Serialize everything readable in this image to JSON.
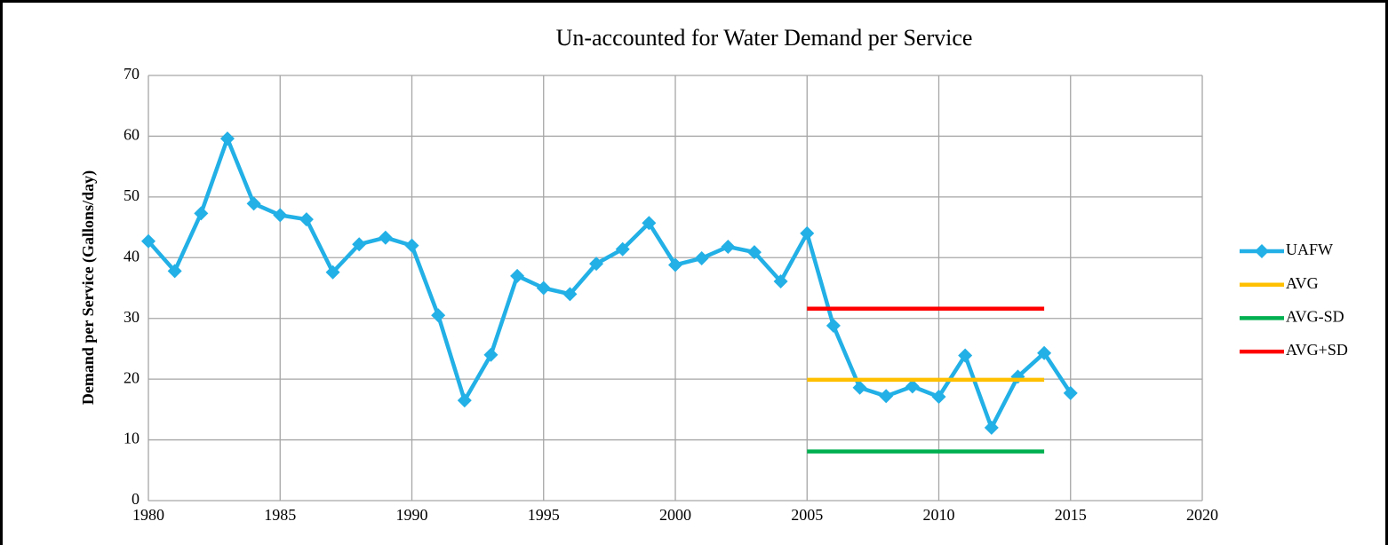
{
  "chart_data": {
    "type": "line",
    "title": "Un-accounted for Water Demand per Service",
    "y_label": "Demand per Service (Gallons/day)",
    "xlim": [
      1980,
      2020
    ],
    "xticks": [
      1980,
      1985,
      1990,
      1995,
      2000,
      2005,
      2010,
      2015,
      2020
    ],
    "ylim": [
      0,
      70
    ],
    "yticks": [
      0,
      10,
      20,
      30,
      40,
      50,
      60,
      70
    ],
    "grid": true,
    "legend": "right",
    "series": [
      {
        "name": "UAFW",
        "color": "#22b0e6",
        "marker": "diamond",
        "x": [
          1980,
          1981,
          1982,
          1983,
          1984,
          1985,
          1986,
          1987,
          1988,
          1989,
          1990,
          1991,
          1992,
          1993,
          1994,
          1995,
          1996,
          1997,
          1998,
          1999,
          2000,
          2001,
          2002,
          2003,
          2004,
          2005,
          2006,
          2007,
          2008,
          2009,
          2010,
          2011,
          2012,
          2013,
          2014,
          2015
        ],
        "values": [
          42.7,
          37.8,
          47.3,
          59.6,
          48.9,
          47.0,
          46.3,
          37.6,
          42.2,
          43.3,
          42.0,
          30.5,
          16.5,
          24.0,
          37.0,
          35.0,
          34.0,
          39.0,
          41.4,
          45.7,
          38.8,
          39.9,
          41.8,
          40.9,
          36.1,
          44.0,
          28.8,
          18.6,
          17.2,
          18.8,
          17.1,
          23.9,
          12.0,
          20.4,
          24.3,
          17.7
        ]
      },
      {
        "name": "AVG",
        "color": "#ffc000",
        "x": [
          2005,
          2014
        ],
        "values": [
          19.9,
          19.9
        ]
      },
      {
        "name": "AVG-SD",
        "color": "#00b050",
        "x": [
          2005,
          2014
        ],
        "values": [
          8.1,
          8.1
        ]
      },
      {
        "name": "AVG+SD",
        "color": "#ff0000",
        "x": [
          2005,
          2014
        ],
        "values": [
          31.6,
          31.6
        ]
      }
    ]
  }
}
